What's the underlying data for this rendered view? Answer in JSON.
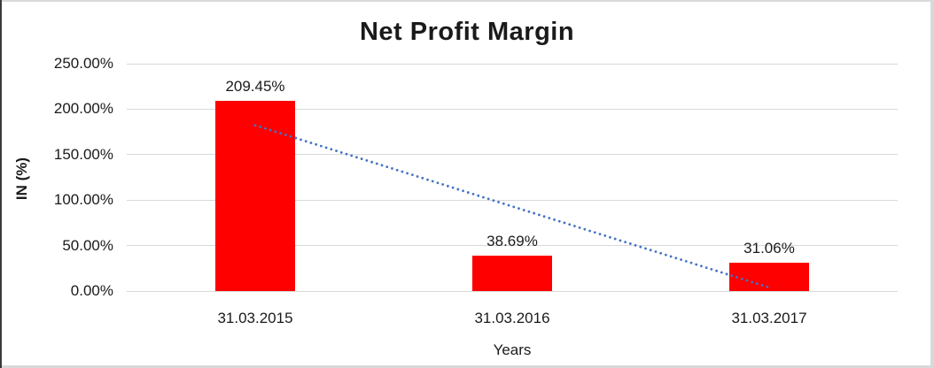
{
  "chart_data": {
    "type": "bar",
    "title": "Net Profit Margin",
    "xlabel": "Years",
    "ylabel": "IN (%)",
    "categories": [
      "31.03.2015",
      "31.03.2016",
      "31.03.2017"
    ],
    "values": [
      209.45,
      38.69,
      31.06
    ],
    "data_labels": [
      "209.45%",
      "38.69%",
      "31.06%"
    ],
    "ylim": [
      0,
      250
    ],
    "ytick_step": 50,
    "ytick_labels": [
      "0.00%",
      "50.00%",
      "100.00%",
      "150.00%",
      "200.00%",
      "250.00%"
    ],
    "grid": true,
    "legend": "none",
    "bar_color": "#ff0000",
    "gridline_color": "#d9d9d9",
    "trendline": {
      "type": "linear",
      "style": "dotted",
      "color": "#4472c4",
      "start_value_pct": 182.3,
      "end_value_pct": 3.9
    }
  }
}
